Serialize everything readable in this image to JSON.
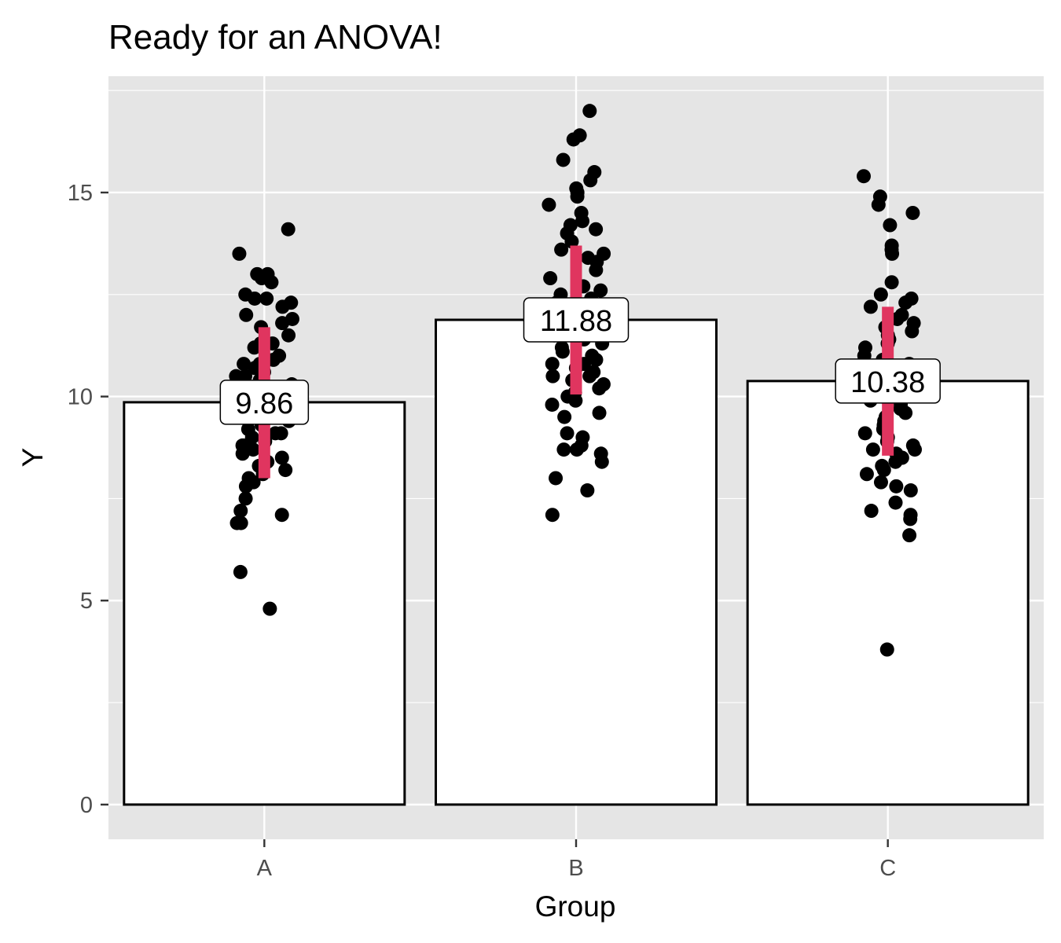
{
  "chart_data": {
    "type": "bar",
    "title": "Ready for an ANOVA!",
    "xlabel": "Group",
    "ylabel": "Y",
    "categories": [
      "A",
      "B",
      "C"
    ],
    "values": [
      9.86,
      11.88,
      10.38
    ],
    "value_labels": [
      "9.86",
      "11.88",
      "10.38"
    ],
    "ylim": [
      -0.85,
      17.85
    ],
    "yticks": [
      0,
      5,
      10,
      15
    ],
    "ytick_labels": [
      "0",
      "5",
      "10",
      "15"
    ],
    "error_bars": [
      {
        "category": "A",
        "low": 8.0,
        "high": 11.7
      },
      {
        "category": "B",
        "low": 10.05,
        "high": 13.7
      },
      {
        "category": "C",
        "low": 8.55,
        "high": 12.2
      }
    ],
    "points": {
      "A": [
        14.1,
        13.5,
        13.0,
        13.0,
        12.9,
        12.8,
        12.5,
        12.4,
        12.4,
        12.3,
        12.2,
        12.0,
        11.9,
        11.8,
        11.7,
        11.5,
        11.3,
        11.3,
        11.2,
        11.0,
        10.9,
        10.9,
        10.8,
        10.8,
        10.7,
        10.6,
        10.5,
        10.5,
        10.4,
        10.3,
        10.2,
        10.1,
        10.0,
        10.0,
        9.9,
        9.9,
        9.8,
        9.7,
        9.6,
        9.5,
        9.4,
        9.3,
        9.2,
        9.1,
        9.1,
        9.0,
        8.9,
        8.8,
        8.8,
        8.7,
        8.6,
        8.5,
        8.4,
        8.3,
        8.2,
        8.1,
        8.0,
        7.9,
        7.8,
        7.5,
        7.2,
        7.1,
        6.9,
        6.9,
        5.7,
        4.8
      ],
      "B": [
        17.0,
        16.4,
        16.3,
        15.8,
        15.5,
        15.3,
        15.1,
        15.0,
        14.9,
        14.7,
        14.5,
        14.3,
        14.2,
        14.1,
        14.0,
        13.8,
        13.6,
        13.5,
        13.4,
        13.3,
        13.1,
        12.9,
        12.7,
        12.6,
        12.5,
        12.4,
        12.3,
        12.2,
        12.1,
        12.0,
        11.9,
        11.8,
        11.7,
        11.6,
        11.5,
        11.4,
        11.3,
        11.2,
        11.1,
        11.0,
        10.9,
        10.8,
        10.8,
        10.7,
        10.6,
        10.5,
        10.5,
        10.4,
        10.3,
        10.2,
        10.1,
        10.0,
        9.9,
        9.8,
        9.6,
        9.5,
        9.1,
        9.0,
        8.8,
        8.7,
        8.7,
        8.6,
        8.4,
        8.0,
        7.7,
        7.1
      ],
      "C": [
        15.4,
        14.9,
        14.7,
        14.5,
        14.2,
        13.7,
        13.6,
        13.5,
        12.8,
        12.5,
        12.4,
        12.3,
        12.2,
        12.0,
        11.9,
        11.8,
        11.7,
        11.6,
        11.5,
        11.4,
        11.3,
        11.2,
        11.0,
        10.9,
        10.8,
        10.7,
        10.6,
        10.5,
        10.4,
        10.3,
        10.2,
        10.1,
        10.0,
        9.9,
        9.8,
        9.7,
        9.6,
        9.5,
        9.4,
        9.3,
        9.2,
        9.1,
        9.0,
        8.9,
        8.8,
        8.7,
        8.7,
        8.6,
        8.5,
        8.4,
        8.3,
        8.2,
        8.1,
        7.9,
        7.8,
        7.7,
        7.4,
        7.2,
        7.1,
        7.0,
        6.6,
        3.8
      ]
    },
    "colors": {
      "panel": "#e5e5e5",
      "grid": "#ffffff",
      "bar_fill": "#ffffff",
      "bar_edge": "#000000",
      "points": "#000000",
      "error_bar": "#e0355f"
    },
    "grid": true,
    "legend": "none"
  }
}
